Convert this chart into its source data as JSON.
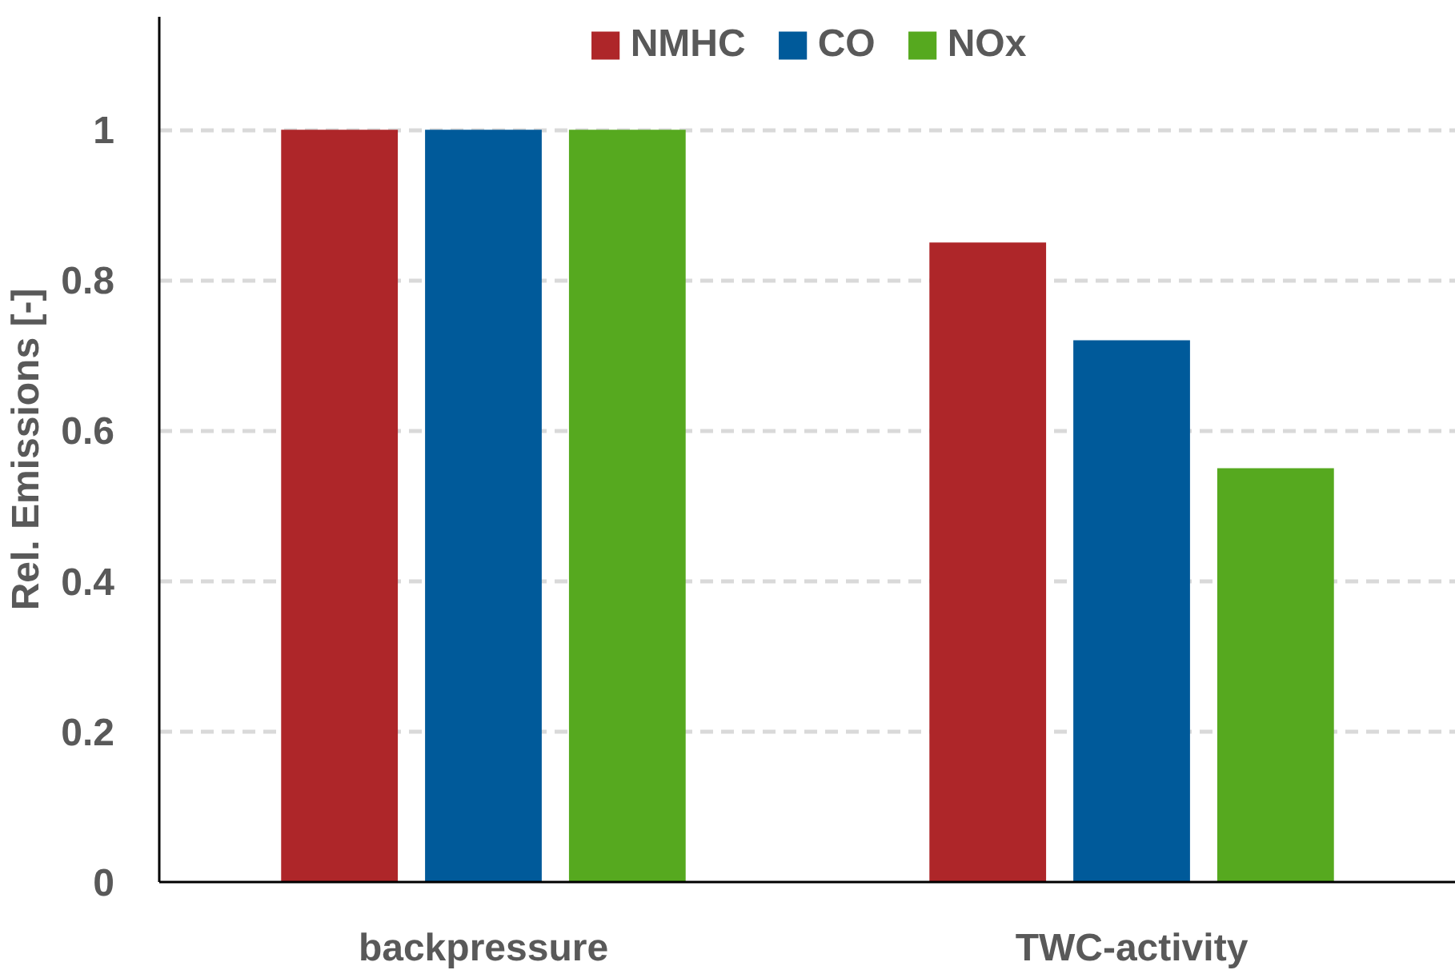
{
  "chart_data": {
    "type": "bar",
    "ylabel": "Rel. Emissions [-]",
    "categories": [
      "backpressure",
      "TWC-activity"
    ],
    "series": [
      {
        "name": "NMHC",
        "color": "#ae2629",
        "values": [
          1.0,
          0.85
        ]
      },
      {
        "name": "CO",
        "color": "#005a9a",
        "values": [
          1.0,
          0.72
        ]
      },
      {
        "name": "NOx",
        "color": "#56a91f",
        "values": [
          1.0,
          0.55
        ]
      }
    ],
    "ylim": [
      0,
      1.15
    ],
    "yticks": [
      0,
      0.2,
      0.4,
      0.6,
      0.8,
      1
    ],
    "grid": "y",
    "legend": "top"
  }
}
